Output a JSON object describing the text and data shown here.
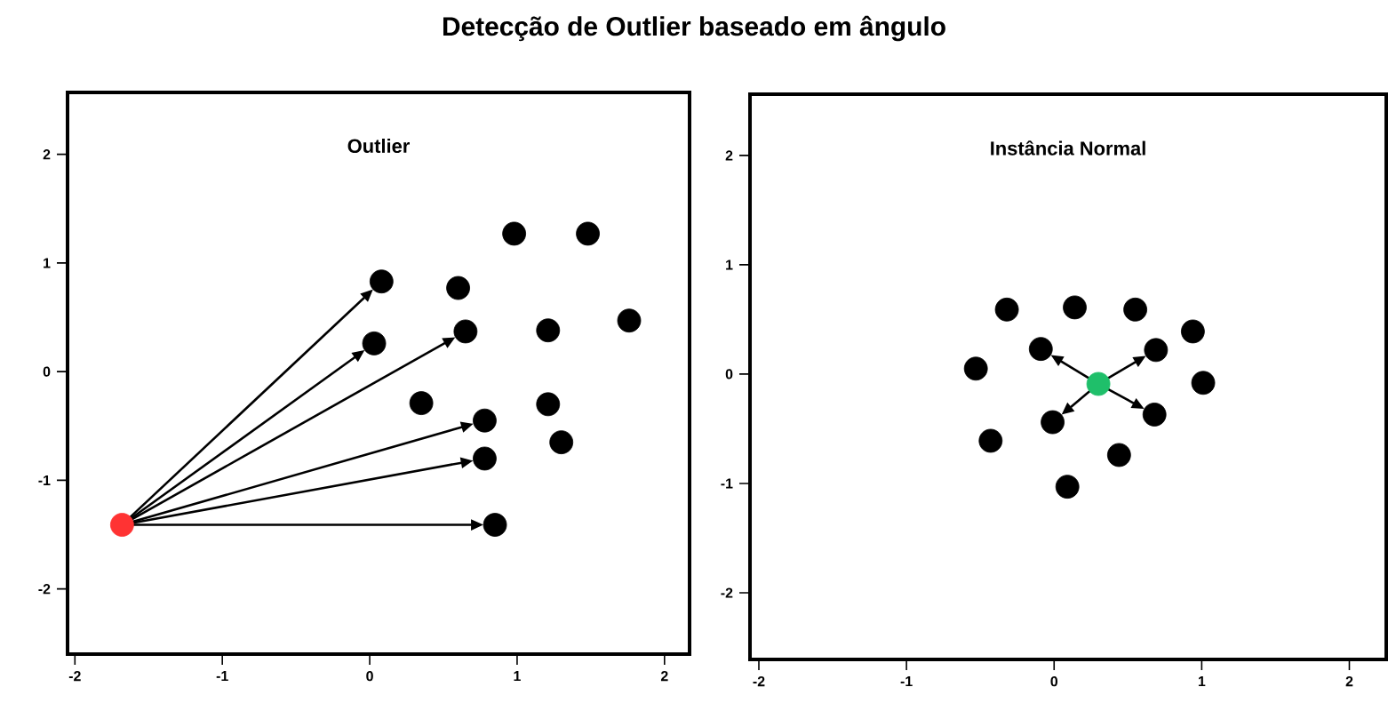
{
  "chart_data": [
    {
      "type": "scatter",
      "title": "Detecção de Outlier baseado em ângulo",
      "subtitle": "Outlier",
      "xlim": [
        -2.05,
        2.17
      ],
      "ylim": [
        -2.6,
        2.57
      ],
      "xticks": [
        -2,
        -1,
        0,
        1,
        2
      ],
      "yticks": [
        -2,
        -1,
        0,
        1,
        2
      ],
      "grid": false,
      "marker": "circle",
      "series": [
        {
          "color": "#ff3333",
          "x": [
            -1.68
          ],
          "values": [
            -1.41
          ]
        },
        {
          "color": "#000000",
          "x": [
            0.08,
            0.03,
            0.65,
            0.78,
            0.78,
            0.85
          ],
          "values": [
            0.83,
            0.26,
            0.37,
            -0.45,
            -0.8,
            -1.41
          ]
        },
        {
          "color": "#000000",
          "x": [
            0.6,
            0.98,
            1.48,
            1.21,
            1.76,
            0.35,
            1.21,
            1.3
          ],
          "values": [
            0.77,
            1.27,
            1.27,
            0.38,
            0.47,
            -0.29,
            -0.3,
            -0.65
          ]
        }
      ]
    },
    {
      "type": "scatter",
      "subtitle": "Instância Normal",
      "xlim": [
        -2.06,
        2.25
      ],
      "ylim": [
        -2.61,
        2.56
      ],
      "xticks": [
        -2,
        -1,
        0,
        1,
        2
      ],
      "yticks": [
        -2,
        -1,
        0,
        1,
        2
      ],
      "grid": false,
      "marker": "circle",
      "series": [
        {
          "color": "#1fbf6a",
          "x": [
            0.3
          ],
          "values": [
            -0.09
          ]
        },
        {
          "color": "#000000",
          "x": [
            -0.09,
            0.69,
            -0.01,
            0.68
          ],
          "values": [
            0.23,
            0.22,
            -0.44,
            -0.37
          ]
        },
        {
          "color": "#000000",
          "x": [
            -0.32,
            0.14,
            0.55,
            0.94,
            -0.53,
            1.01,
            -0.43,
            0.44,
            0.09
          ],
          "values": [
            0.59,
            0.61,
            0.59,
            0.39,
            0.05,
            -0.08,
            -0.61,
            -0.74,
            -1.03
          ]
        }
      ]
    }
  ]
}
